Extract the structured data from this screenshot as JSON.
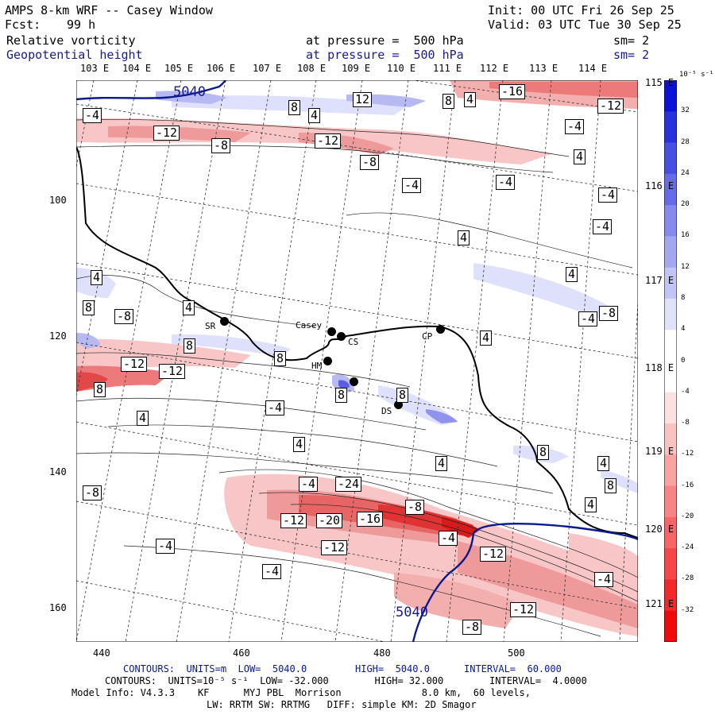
{
  "header": {
    "model_title": "AMPS 8-km WRF -- Casey Window",
    "init": "Init: 00 UTC Fri 26 Sep 25",
    "fcst_label": "Fcst:",
    "fcst_value": "99 h",
    "valid": "Valid: 03 UTC Tue 30 Sep 25",
    "field1": "Relative vorticity",
    "field1_level": "at pressure =  500 hPa",
    "field1_sm": "sm= 2",
    "field2": "Geopotential height",
    "field2_level": "at pressure =  500 hPa",
    "field2_sm": "sm= 2"
  },
  "map": {
    "top_lon_labels": [
      "103 E",
      "104 E",
      "105 E",
      "106 E",
      "107 E",
      "108 E",
      "109 E",
      "110 E",
      "111 E",
      "112 E",
      "113 E",
      "114 E"
    ],
    "right_lat_labels": [
      "115 E",
      "116 E",
      "117 E",
      "118 E",
      "119 E",
      "120 E",
      "121 E"
    ],
    "y_ticks": [
      "100",
      "120",
      "140",
      "160"
    ],
    "x_ticks": [
      "440",
      "460",
      "480",
      "500"
    ],
    "stations": [
      "SR",
      "Casey",
      "CS",
      "CP",
      "HM",
      "DS"
    ],
    "height_contour_label": "5040",
    "contour_labels": [
      "-4",
      "-12",
      "-8",
      "-12",
      "-8",
      "-4",
      "-4",
      "-4",
      "-4",
      "8",
      "4",
      "12",
      "8",
      "4",
      "-16",
      "-12",
      "-4",
      "4",
      "4",
      "4",
      "8",
      "4",
      "-8",
      "4",
      "8",
      "8",
      "8",
      "8",
      "4",
      "-4",
      "-8",
      "-12",
      "-12",
      "8",
      "-4",
      "4",
      "4",
      "4",
      "8",
      "4",
      "8",
      "4",
      "-8",
      "-4",
      "-24",
      "-8",
      "-12",
      "-20",
      "-16",
      "-4",
      "-12",
      "-4",
      "-12",
      "-4",
      "-4",
      "-12",
      "-8"
    ]
  },
  "colorbar": {
    "unit": "10⁻⁵ s⁻¹",
    "labels": [
      "32",
      "28",
      "24",
      "20",
      "16",
      "12",
      "8",
      "4",
      "0",
      "-4",
      "-8",
      "-12",
      "-16",
      "-20",
      "-24",
      "-28",
      "-32"
    ]
  },
  "footer": {
    "line1_left": "CONTOURS:  UNITS=m  LOW=  5040.0",
    "line1_mid": "HIGH=  5040.0",
    "line1_right": "INTERVAL=  60.000",
    "line2": "CONTOURS:  UNITS=10⁻⁵ s⁻¹  LOW= -32.000        HIGH= 32.000        INTERVAL=  4.0000",
    "line3": "Model Info: V4.3.3    KF      MYJ PBL  Morrison              8.0 km,  60 levels,",
    "line4": "LW: RRTM SW: RRTMG   DIFF: simple KM: 2D Smagor"
  },
  "colors": {
    "pos_max": "#0a14d8",
    "neg_max": "#f00a0a",
    "height_contour": "#0a1a8c"
  }
}
